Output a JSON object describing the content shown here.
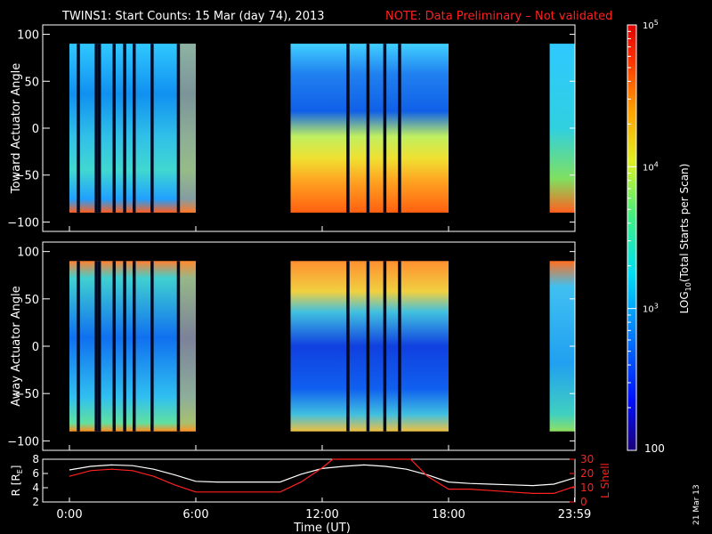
{
  "header": {
    "title": "TWINS1: Start Counts: 15 Mar (day  74), 2013",
    "note": "NOTE: Data Preliminary – Not validated",
    "note_color": "#ff2020"
  },
  "footer": {
    "date_stamp": "21 Mar 13"
  },
  "colors": {
    "frame": "#ffffff",
    "line_r": "#ffffff",
    "line_lshell": "#ff2020"
  },
  "colorbar": {
    "label_prefix": "LOG",
    "label_sub": "10",
    "label_suffix": "(Total Starts per Scan)",
    "ticks": [
      {
        "value": 100,
        "label": "100",
        "major": false
      },
      {
        "value": 1000,
        "label_base": "10",
        "label_exp": "3"
      },
      {
        "value": 10000,
        "label_base": "10",
        "label_exp": "4"
      },
      {
        "value": 100000,
        "label_base": "10",
        "label_exp": "5"
      }
    ],
    "range": [
      100,
      100000
    ],
    "scale": "log"
  },
  "chart_data": [
    {
      "type": "heatmap",
      "panel": "top",
      "ylabel": "Toward Actuator Angle",
      "ylim": [
        -110,
        110
      ],
      "yticks": [
        "100",
        "50",
        "0",
        "−50",
        "−100"
      ],
      "ytick_values": [
        100,
        50,
        0,
        -50,
        -100
      ],
      "xlim": [
        0,
        24
      ],
      "data_segments_hours": [
        [
          0.0,
          6.0
        ],
        [
          10.5,
          18.0
        ],
        [
          22.8,
          24.0
        ]
      ],
      "data_y_range": [
        -90,
        90
      ],
      "dark_gap_hours": [
        0.35,
        1.2,
        1.35,
        2.05,
        2.55,
        3.0,
        3.85,
        5.1,
        13.15,
        14.1,
        14.9,
        15.6
      ]
    },
    {
      "type": "heatmap",
      "panel": "bottom",
      "ylabel": "Away Actuator Angle",
      "ylim": [
        -110,
        110
      ],
      "yticks": [
        "100",
        "50",
        "0",
        "−50",
        "−100"
      ],
      "ytick_values": [
        100,
        50,
        0,
        -50,
        -100
      ],
      "xlim": [
        0,
        24
      ],
      "data_segments_hours": [
        [
          0.0,
          6.0
        ],
        [
          10.5,
          18.0
        ],
        [
          22.8,
          24.0
        ]
      ],
      "data_y_range": [
        -90,
        90
      ],
      "dark_gap_hours": [
        0.35,
        1.2,
        1.35,
        2.05,
        2.55,
        3.0,
        3.85,
        5.1,
        13.15,
        14.1,
        14.9,
        15.6
      ]
    },
    {
      "type": "line",
      "panel": "orbit",
      "xlabel": "Time (UT)",
      "xticks": [
        "0:00",
        "6:00",
        "12:00",
        "18:00",
        "23:59"
      ],
      "xtick_values": [
        0,
        6,
        12,
        18,
        23.98
      ],
      "ylabel_left": "R [R",
      "ylabel_left_sub": "E",
      "ylabel_left_end": "]",
      "ylim_left": [
        2,
        8
      ],
      "yticks_left": [
        "2",
        "4",
        "6",
        "8"
      ],
      "ylabel_right": "L Shell",
      "ylim_right": [
        0,
        30
      ],
      "yticks_right": [
        "0",
        "10",
        "20",
        "30"
      ],
      "series": [
        {
          "name": "R",
          "axis": "left",
          "x": [
            0,
            1,
            2,
            3,
            4,
            5,
            6,
            7,
            8,
            9,
            10,
            11,
            12,
            13,
            14,
            15,
            16,
            17,
            18,
            19,
            20,
            21,
            22,
            23,
            24
          ],
          "y": [
            6.5,
            7.0,
            7.2,
            7.1,
            6.6,
            5.8,
            4.9,
            4.8,
            4.8,
            4.8,
            4.8,
            5.9,
            6.7,
            7.0,
            7.2,
            7.0,
            6.6,
            5.8,
            4.8,
            4.6,
            4.5,
            4.4,
            4.3,
            4.5,
            5.4
          ]
        },
        {
          "name": "L Shell",
          "axis": "right",
          "x": [
            0,
            1,
            2,
            3,
            4,
            5,
            6,
            7,
            8,
            9,
            10,
            11,
            12,
            12.5,
            16.2,
            17,
            18,
            19,
            20,
            21,
            22,
            23,
            24
          ],
          "y": [
            18,
            22,
            23,
            22,
            18,
            12,
            7,
            7,
            7,
            7,
            7,
            14,
            24,
            31,
            31,
            18,
            9,
            9,
            8,
            7,
            6,
            6,
            11
          ]
        }
      ]
    }
  ]
}
